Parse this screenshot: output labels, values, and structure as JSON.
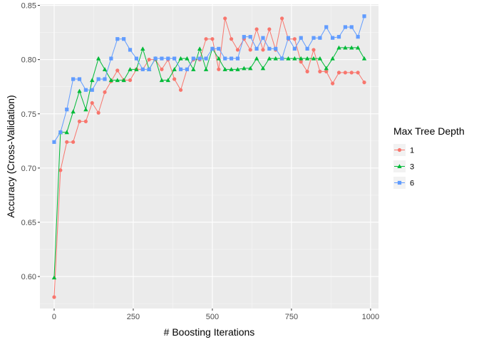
{
  "chart_data": {
    "type": "line",
    "title": "",
    "xlabel": "# Boosting Iterations",
    "ylabel": "Accuracy (Cross-Validation)",
    "xlim": [
      -45,
      1025
    ],
    "ylim": [
      0.5705,
      0.851
    ],
    "x_ticks": [
      0,
      250,
      500,
      750,
      1000
    ],
    "x_tick_labels": [
      "0",
      "250",
      "500",
      "750",
      "1000"
    ],
    "y_ticks": [
      0.6,
      0.65,
      0.7,
      0.75,
      0.8,
      0.85
    ],
    "y_tick_labels": [
      "0.60",
      "0.65",
      "0.70",
      "0.75",
      "0.80",
      "0.85"
    ],
    "grid": true,
    "legend": {
      "title": "Max Tree Depth",
      "position": "right"
    },
    "x": [
      0,
      20,
      40,
      60,
      80,
      100,
      120,
      140,
      160,
      180,
      200,
      220,
      240,
      260,
      280,
      300,
      320,
      340,
      360,
      380,
      400,
      420,
      440,
      460,
      480,
      500,
      520,
      540,
      560,
      580,
      600,
      620,
      640,
      660,
      680,
      700,
      720,
      740,
      760,
      780,
      800,
      820,
      840,
      860,
      880,
      900,
      920,
      940,
      960,
      980
    ],
    "series": [
      {
        "name": "1",
        "color": "#F8766D",
        "marker": "circle",
        "values": [
          0.581,
          0.698,
          0.724,
          0.724,
          0.743,
          0.743,
          0.76,
          0.751,
          0.77,
          0.78,
          0.79,
          0.781,
          0.781,
          0.791,
          0.791,
          0.8,
          0.8,
          0.791,
          0.8,
          0.782,
          0.772,
          0.791,
          0.8,
          0.8,
          0.819,
          0.819,
          0.791,
          0.838,
          0.819,
          0.809,
          0.819,
          0.809,
          0.828,
          0.809,
          0.828,
          0.809,
          0.838,
          0.819,
          0.819,
          0.798,
          0.789,
          0.809,
          0.789,
          0.789,
          0.778,
          0.788,
          0.788,
          0.788,
          0.788,
          0.779
        ]
      },
      {
        "name": "3",
        "color": "#00BA38",
        "marker": "triangle",
        "values": [
          0.599,
          0.733,
          0.733,
          0.752,
          0.771,
          0.754,
          0.781,
          0.801,
          0.791,
          0.781,
          0.781,
          0.781,
          0.791,
          0.791,
          0.81,
          0.791,
          0.801,
          0.781,
          0.781,
          0.791,
          0.801,
          0.801,
          0.791,
          0.81,
          0.791,
          0.81,
          0.801,
          0.791,
          0.791,
          0.791,
          0.792,
          0.792,
          0.801,
          0.792,
          0.801,
          0.801,
          0.801,
          0.801,
          0.801,
          0.801,
          0.801,
          0.801,
          0.801,
          0.792,
          0.801,
          0.811,
          0.811,
          0.811,
          0.811,
          0.801
        ]
      },
      {
        "name": "6",
        "color": "#619CFF",
        "marker": "square",
        "values": [
          0.724,
          0.733,
          0.754,
          0.782,
          0.782,
          0.772,
          0.772,
          0.782,
          0.782,
          0.801,
          0.819,
          0.819,
          0.809,
          0.801,
          0.791,
          0.791,
          0.801,
          0.801,
          0.801,
          0.801,
          0.791,
          0.791,
          0.801,
          0.801,
          0.801,
          0.81,
          0.81,
          0.801,
          0.801,
          0.801,
          0.821,
          0.821,
          0.81,
          0.82,
          0.81,
          0.81,
          0.801,
          0.82,
          0.81,
          0.82,
          0.81,
          0.82,
          0.82,
          0.83,
          0.82,
          0.821,
          0.83,
          0.83,
          0.821,
          0.84
        ]
      }
    ]
  }
}
